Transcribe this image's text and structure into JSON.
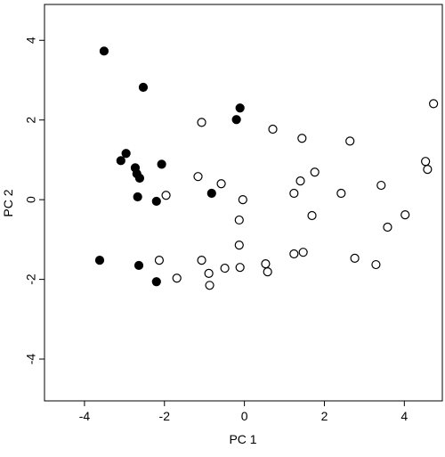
{
  "chart_data": {
    "type": "scatter",
    "xlabel": "PC 1",
    "ylabel": "PC 2",
    "xlim": [
      -5,
      4.95
    ],
    "ylim": [
      -5.05,
      4.9
    ],
    "xticks": [
      -4,
      -2,
      0,
      2,
      4
    ],
    "yticks": [
      -4,
      -2,
      0,
      2,
      4
    ],
    "series": [
      {
        "color": "#000000",
        "x": [
          -3.51,
          -2.53,
          -0.11,
          -0.2,
          -2.96,
          -3.09,
          -2.73,
          -2.69,
          -2.62,
          -2.07,
          -2.67,
          -0.82,
          -2.2,
          -3.62,
          -2.64,
          -2.2
        ],
        "values": [
          3.73,
          2.82,
          2.3,
          2.01,
          1.16,
          0.98,
          0.8,
          0.65,
          0.54,
          0.89,
          0.07,
          0.16,
          -0.04,
          -1.52,
          -1.65,
          -2.06
        ]
      },
      {
        "color": "#ffffff",
        "x": [
          -1.07,
          0.71,
          1.44,
          2.64,
          4.73,
          4.53,
          4.58,
          -1.16,
          -0.58,
          -1.96,
          -0.04,
          1.76,
          1.4,
          1.24,
          2.42,
          3.42,
          -0.13,
          1.69,
          4.02,
          3.58,
          -0.13,
          -2.13,
          -1.07,
          0.53,
          0.58,
          -0.49,
          -0.11,
          -0.89,
          -0.87,
          -1.69,
          1.24,
          1.47,
          2.76,
          3.29
        ],
        "values": [
          1.94,
          1.77,
          1.54,
          1.47,
          2.41,
          0.96,
          0.76,
          0.58,
          0.4,
          0.11,
          0.0,
          0.69,
          0.47,
          0.16,
          0.16,
          0.36,
          -0.51,
          -0.4,
          -0.38,
          -0.69,
          -1.14,
          -1.52,
          -1.52,
          -1.61,
          -1.81,
          -1.72,
          -1.7,
          -1.85,
          -2.15,
          -1.97,
          -1.36,
          -1.32,
          -1.47,
          -1.63
        ]
      }
    ]
  }
}
